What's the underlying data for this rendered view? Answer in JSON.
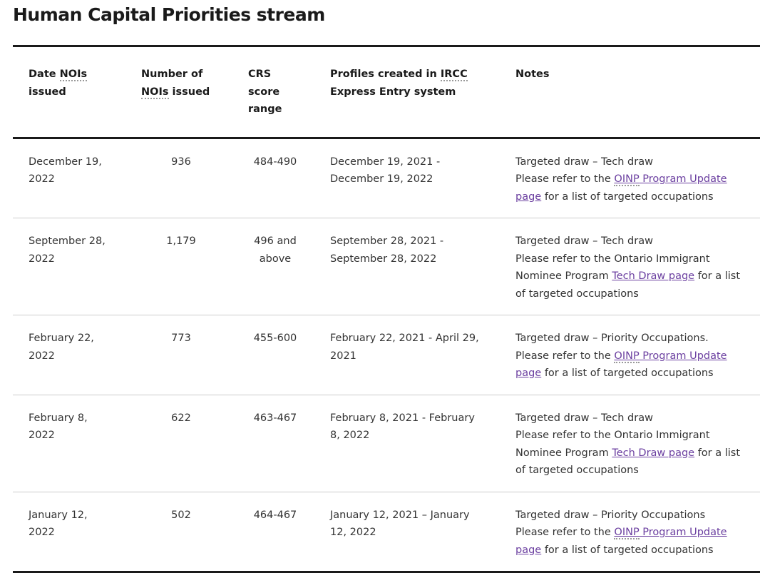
{
  "title": "Human Capital Priorities stream",
  "headers": {
    "date_pre": "Date ",
    "date_abbr": "NOIs",
    "date_post": " issued",
    "num_pre": "Number of ",
    "num_abbr": "NOIs",
    "num_post": " issued",
    "crs": "CRS score range",
    "prof_pre": "Profiles created in ",
    "prof_abbr": "IRCC",
    "prof_post": " Express Entry system",
    "notes": "Notes"
  },
  "rows": [
    {
      "date": "December 19, 2022",
      "number": "936",
      "crs": "484-490",
      "profiles": "December 19, 2021 - December 19, 2022",
      "note_line1": "Targeted draw – Tech draw",
      "note_pre": "Please refer to the ",
      "link_abbr": "OINP",
      "link_rest": " Program Update page",
      "note_post": " for a list of targeted occupations"
    },
    {
      "date": "September 28, 2022",
      "number": "1,179",
      "crs": "496 and above",
      "profiles": "September 28, 2021 - September 28, 2022",
      "note_line1": "Targeted draw – Tech draw",
      "note_pre": "Please refer to the Ontario Immigrant Nominee Program ",
      "link_abbr": "",
      "link_rest": "Tech Draw page",
      "note_post": " for a list of targeted occupations"
    },
    {
      "date": "February 22, 2022",
      "number": "773",
      "crs": "455-600",
      "profiles": "February 22, 2021 - April 29, 2021",
      "note_line1": "Targeted draw – Priority Occupations.",
      "note_pre": "Please refer to the ",
      "link_abbr": "OINP",
      "link_rest": " Program Update page",
      "note_post": " for a list of targeted occupations"
    },
    {
      "date": "February 8, 2022",
      "number": "622",
      "crs": "463-467",
      "profiles": "February 8, 2021 - February 8, 2022",
      "note_line1": "Targeted draw – Tech draw",
      "note_pre": "Please refer to the Ontario Immigrant Nominee Program ",
      "link_abbr": "",
      "link_rest": "Tech Draw page",
      "note_post": " for a list of targeted occupations"
    },
    {
      "date": "January 12, 2022",
      "number": "502",
      "crs": "464-467",
      "profiles": "January 12, 2021 – January 12, 2022",
      "note_line1": "Targeted draw – Priority Occupations",
      "note_pre": "Please refer to the ",
      "link_abbr": "OINP",
      "link_rest": " Program Update page",
      "note_post": " for a list of targeted occupations"
    }
  ]
}
